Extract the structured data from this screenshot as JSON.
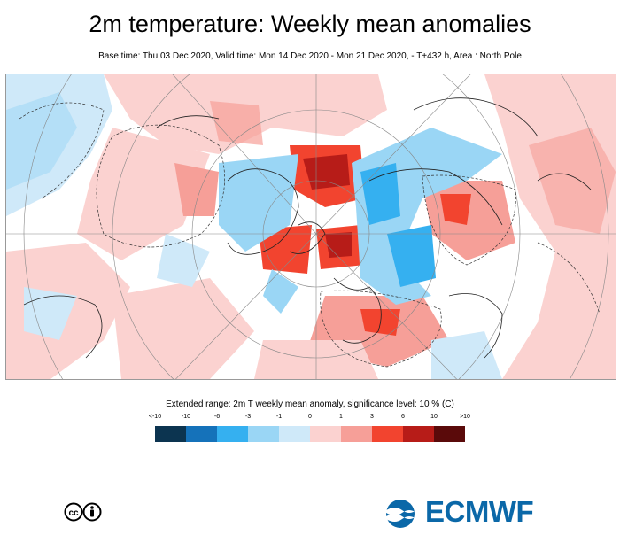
{
  "title": "2m temperature: Weekly mean anomalies",
  "subtitle": "Base time: Thu 03 Dec 2020, Valid time: Mon 14 Dec 2020 - Mon 21 Dec 2020, - T+432 h, Area : North Pole",
  "legend": {
    "title": "Extended range: 2m T weekly mean anomaly, significance level: 10 % (C)",
    "ticks": [
      "<-10",
      "-10",
      "-6",
      "-3",
      "-1",
      "0",
      "1",
      "3",
      "6",
      "10",
      ">10"
    ],
    "colors": [
      "#0c3450",
      "#1572ba",
      "#35b0f0",
      "#9ad6f5",
      "#cfe9f9",
      "#fbd2d0",
      "#f69f98",
      "#f2442f",
      "#b71c18",
      "#5a0a0a"
    ]
  },
  "logo": {
    "text": "ECMWF",
    "color": "#0b68a8"
  },
  "license_icons": [
    "cc-icon",
    "by-icon"
  ]
}
